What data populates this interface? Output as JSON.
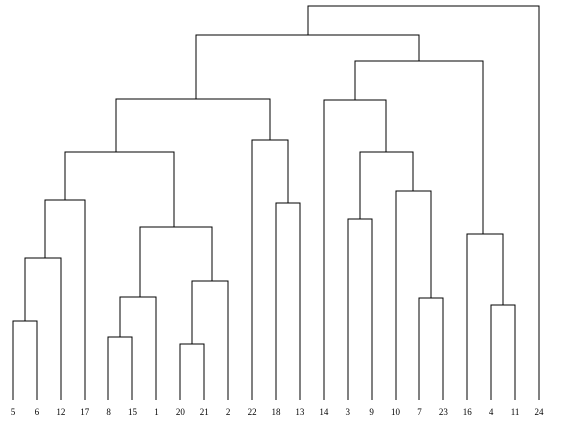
{
  "leaves": [
    "5",
    "6",
    "12",
    "17",
    "8",
    "15",
    "1",
    "20",
    "21",
    "2",
    "22",
    "18",
    "13",
    "14",
    "3",
    "9",
    "10",
    "7",
    "23",
    "16",
    "4",
    "11",
    "24"
  ]
}
